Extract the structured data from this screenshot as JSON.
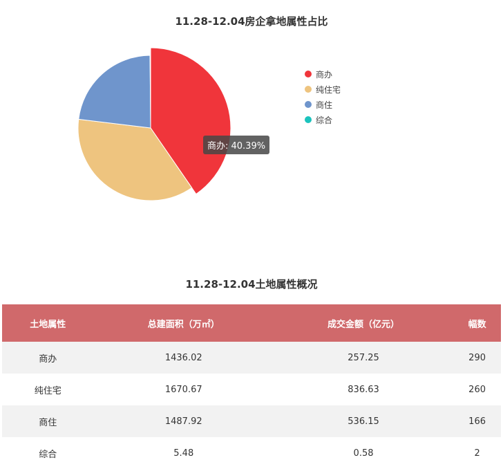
{
  "pie_title": "11.28-12.04房企拿地属性占比",
  "table_title": "11.28-12.04土地属性概况",
  "tooltip": "商办: 40.39%",
  "colors": {
    "table_header_bg": "#d0696b"
  },
  "chart_data": {
    "type": "pie",
    "title": "11.28-12.04房企拿地属性占比",
    "legend_position": "right",
    "slices": [
      {
        "label": "商办",
        "value": 40.39,
        "color": "#f0353b"
      },
      {
        "label": "纯住宅",
        "value": 36.52,
        "color": "#eec47f"
      },
      {
        "label": "商住",
        "value": 22.96,
        "color": "#6f95cc"
      },
      {
        "label": "综合",
        "value": 0.13,
        "color": "#1bc3bd"
      }
    ],
    "highlighted": "商办"
  },
  "table": {
    "columns": [
      "土地属性",
      "总建面积（万㎡）",
      "成交金额（亿元）",
      "幅数"
    ],
    "rows": [
      [
        "商办",
        "1436.02",
        "257.25",
        "290"
      ],
      [
        "纯住宅",
        "1670.67",
        "836.63",
        "260"
      ],
      [
        "商住",
        "1487.92",
        "536.15",
        "166"
      ],
      [
        "综合",
        "5.48",
        "0.58",
        "2"
      ]
    ]
  }
}
